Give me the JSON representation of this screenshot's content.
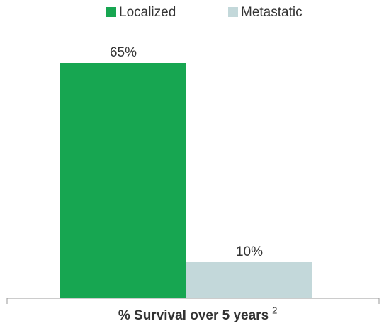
{
  "chart_data": {
    "type": "bar",
    "categories": [
      "% Survival over 5 years"
    ],
    "category_superscript": "2",
    "series": [
      {
        "name": "Localized",
        "color": "#17a651",
        "values": [
          65
        ],
        "value_labels": [
          "65%"
        ]
      },
      {
        "name": "Metastatic",
        "color": "#c3d8da",
        "values": [
          10
        ],
        "value_labels": [
          "10%"
        ]
      }
    ]
  }
}
